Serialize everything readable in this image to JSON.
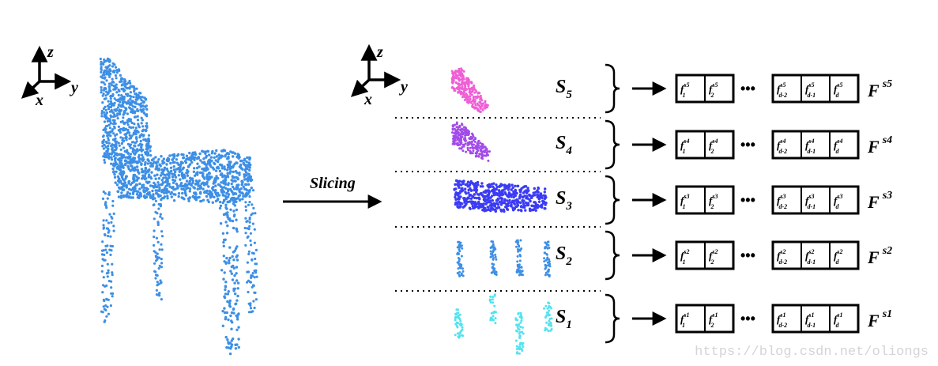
{
  "axes": [
    {
      "z": "z",
      "y": "y",
      "x": "x"
    },
    {
      "z": "z",
      "y": "y",
      "x": "x"
    }
  ],
  "slicing_label": "Slicing",
  "colors": {
    "chair": "#3d8fe6",
    "ink": "#000000",
    "slices": [
      "#52e3f0",
      "#3d8fe6",
      "#3b3bf5",
      "#a24bea",
      "#ef5fd6"
    ]
  },
  "slices": [
    {
      "label": "S",
      "sub": "5",
      "feature": "F",
      "feature_sup": "s5",
      "cells": [
        {
          "s": "s5",
          "sub": "1"
        },
        {
          "s": "s5",
          "sub": "2"
        },
        {
          "s": "s5",
          "sub": "d-2"
        },
        {
          "s": "s5",
          "sub": "d-1"
        },
        {
          "s": "s5",
          "sub": "d"
        }
      ]
    },
    {
      "label": "S",
      "sub": "4",
      "feature": "F",
      "feature_sup": "s4",
      "cells": [
        {
          "s": "s4",
          "sub": "1"
        },
        {
          "s": "s4",
          "sub": "2"
        },
        {
          "s": "s4",
          "sub": "d-2"
        },
        {
          "s": "s4",
          "sub": "d-1"
        },
        {
          "s": "s4",
          "sub": "d"
        }
      ]
    },
    {
      "label": "S",
      "sub": "3",
      "feature": "F",
      "feature_sup": "s3",
      "cells": [
        {
          "s": "s3",
          "sub": "1"
        },
        {
          "s": "s3",
          "sub": "2"
        },
        {
          "s": "s3",
          "sub": "d-2"
        },
        {
          "s": "s3",
          "sub": "d-1"
        },
        {
          "s": "s3",
          "sub": "d"
        }
      ]
    },
    {
      "label": "S",
      "sub": "2",
      "feature": "F",
      "feature_sup": "s2",
      "cells": [
        {
          "s": "s2",
          "sub": "1"
        },
        {
          "s": "s2",
          "sub": "2"
        },
        {
          "s": "s2",
          "sub": "d-2"
        },
        {
          "s": "s2",
          "sub": "d-1"
        },
        {
          "s": "s2",
          "sub": "d"
        }
      ]
    },
    {
      "label": "S",
      "sub": "1",
      "feature": "F",
      "feature_sup": "s1",
      "cells": [
        {
          "s": "s1",
          "sub": "1"
        },
        {
          "s": "s1",
          "sub": "2"
        },
        {
          "s": "s1",
          "sub": "d-2"
        },
        {
          "s": "s1",
          "sub": "d-1"
        },
        {
          "s": "s1",
          "sub": "d"
        }
      ]
    }
  ],
  "cell_letter": "f",
  "ellipsis": "•••",
  "watermark": "https://blog.csdn.net/oliongs"
}
